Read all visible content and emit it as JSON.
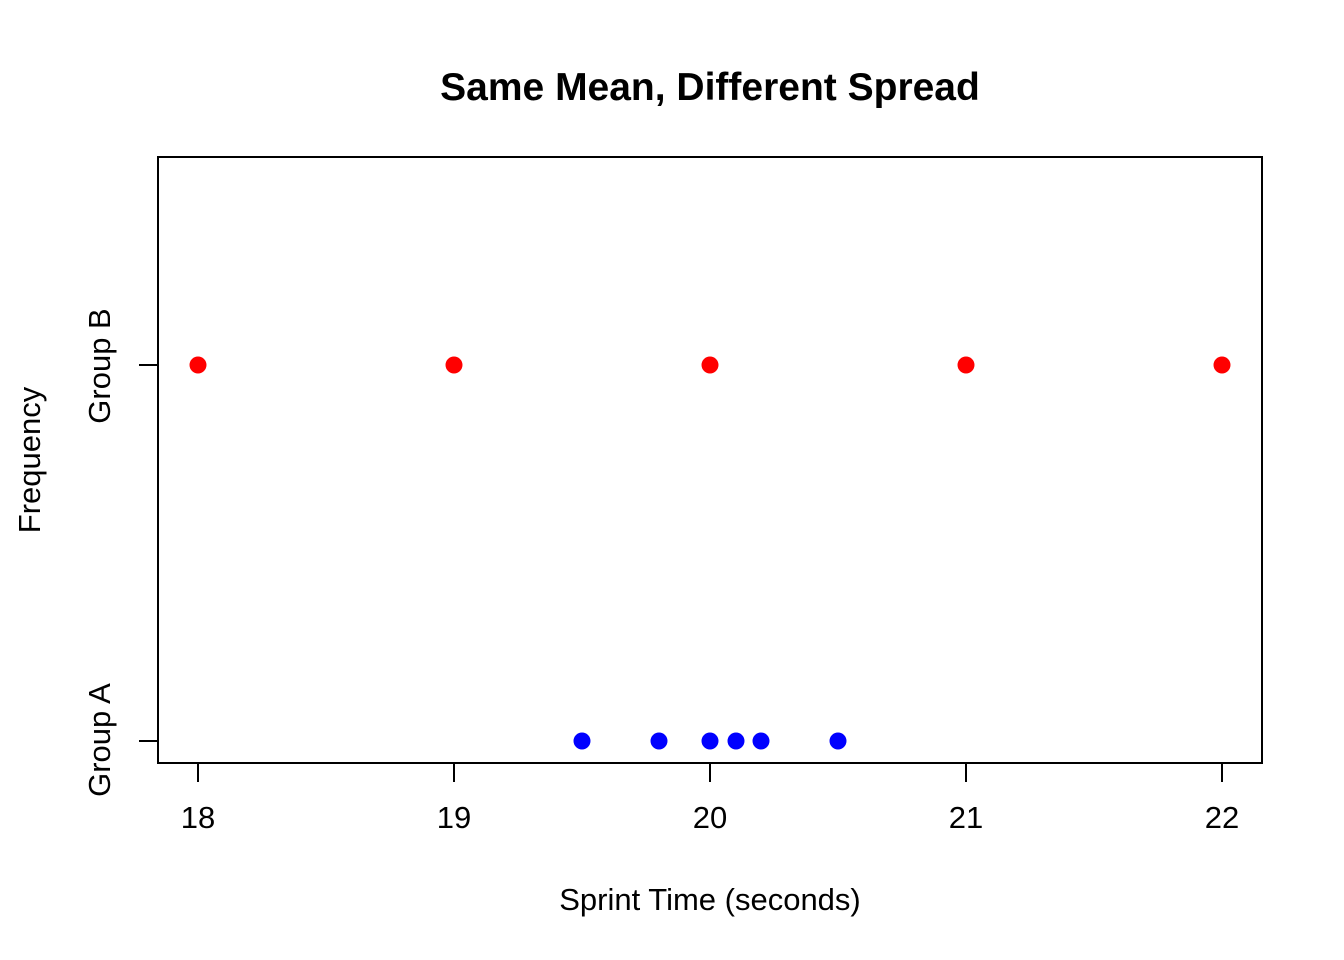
{
  "chart_data": {
    "type": "scatter",
    "title": "Same Mean, Different Spread",
    "xlabel": "Sprint Time (seconds)",
    "ylabel": "Frequency",
    "x_ticks": [
      18,
      19,
      20,
      21,
      22
    ],
    "xlim": [
      17.84,
      22.16
    ],
    "y_categories": [
      "Group A",
      "Group B"
    ],
    "grid": false,
    "legend": "none",
    "background_color": "#ffffff",
    "axis_color": "#000000",
    "series": [
      {
        "name": "Group A",
        "y_category": "Group A",
        "color": "#0000ff",
        "x": [
          19.5,
          19.8,
          20.0,
          20.1,
          20.2,
          20.5
        ]
      },
      {
        "name": "Group B",
        "y_category": "Group B",
        "color": "#ff0000",
        "x": [
          18,
          19,
          20,
          21,
          22
        ]
      }
    ]
  }
}
